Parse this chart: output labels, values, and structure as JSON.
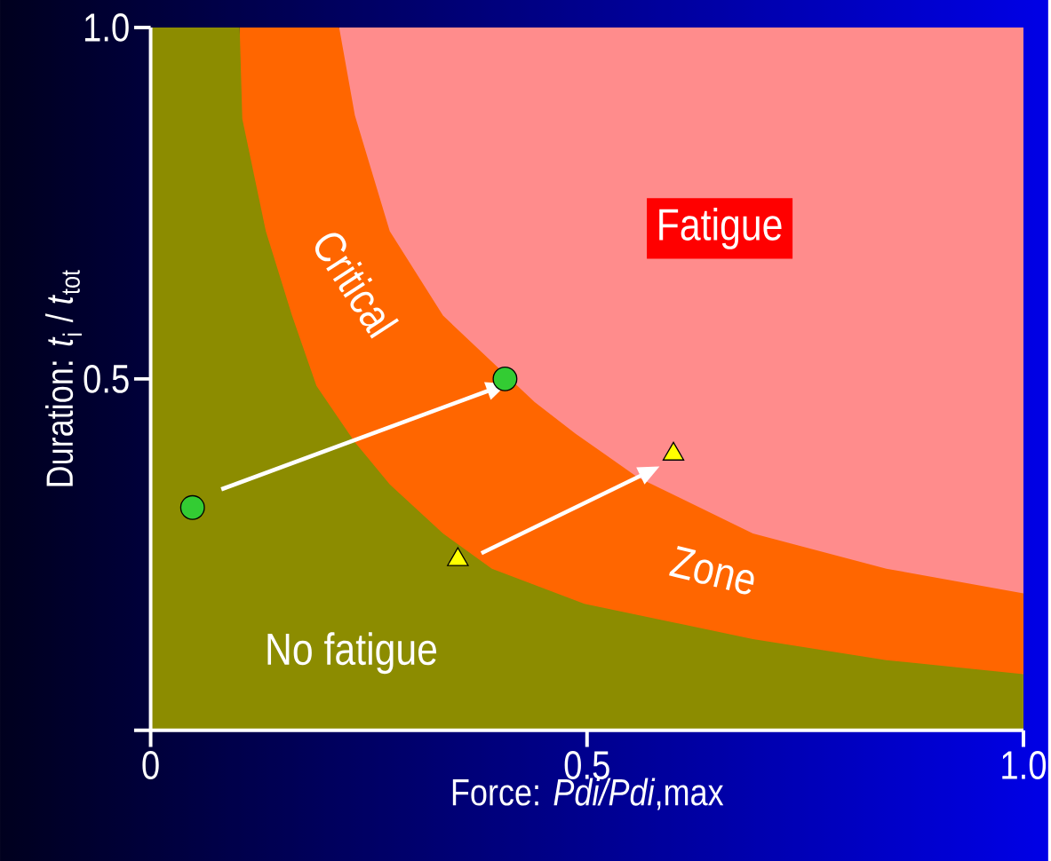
{
  "chart_data": {
    "type": "area",
    "xlabel": "Force: *Pdi/Pdi*,max",
    "ylabel": "Duration:  *t*$_{i}$ / *t*$_{tot}$",
    "series": [
      {
        "color": "#ff8c8c",
        "x": [
          0.216,
          1.0
        ],
        "values": [
          1,
          1
        ]
      },
      {
        "color": "#ff6600",
        "x": [
          0.102,
          0.216,
          0.234,
          0.274,
          0.335,
          0.44,
          0.487,
          0.558,
          0.69,
          0.843,
          1.0
        ],
        "values": [
          1,
          1,
          0.875,
          0.71,
          0.59,
          0.467,
          0.422,
          0.36,
          0.28,
          0.23,
          0.195
        ]
      },
      {
        "color": "#8c8c00",
        "x": [
          0,
          0.102,
          0.105,
          0.132,
          0.162,
          0.19,
          0.234,
          0.274,
          0.335,
          0.391,
          0.497,
          0.69,
          0.843,
          1.0
        ],
        "values": [
          1,
          1,
          0.87,
          0.71,
          0.59,
          0.49,
          0.41,
          0.35,
          0.28,
          0.23,
          0.18,
          0.13,
          0.1,
          0.08
        ]
      },
      {
        "type": "scatter",
        "marker": "circle",
        "color": "#33cc33",
        "x": [
          0.048,
          0.406
        ],
        "values": [
          0.317,
          0.5
        ]
      },
      {
        "type": "scatter",
        "marker": "triangle",
        "color": "#ffff00",
        "x": [
          0.352,
          0.599
        ],
        "values": [
          0.243,
          0.393
        ]
      },
      {
        "type": "line",
        "color": "#ffffff",
        "x": [
          0.081,
          0.391
        ],
        "values": [
          0.343,
          0.485
        ]
      },
      {
        "type": "line",
        "color": "#ffffff",
        "x": [
          0.379,
          0.566
        ],
        "values": [
          0.252,
          0.365
        ]
      }
    ],
    "annotations": [
      "Fatigue",
      "Critical",
      "Zone",
      "No fatigue"
    ],
    "xlim": [
      0,
      1
    ],
    "ylim": [
      0,
      1
    ],
    "xticks": [
      0,
      0.5,
      {
        "value": 1,
        "label": "1.0"
      }
    ],
    "yticks": [
      {
        "value": 0,
        "label": null
      },
      0.5,
      {
        "value": 1,
        "label": "1.0"
      }
    ]
  }
}
